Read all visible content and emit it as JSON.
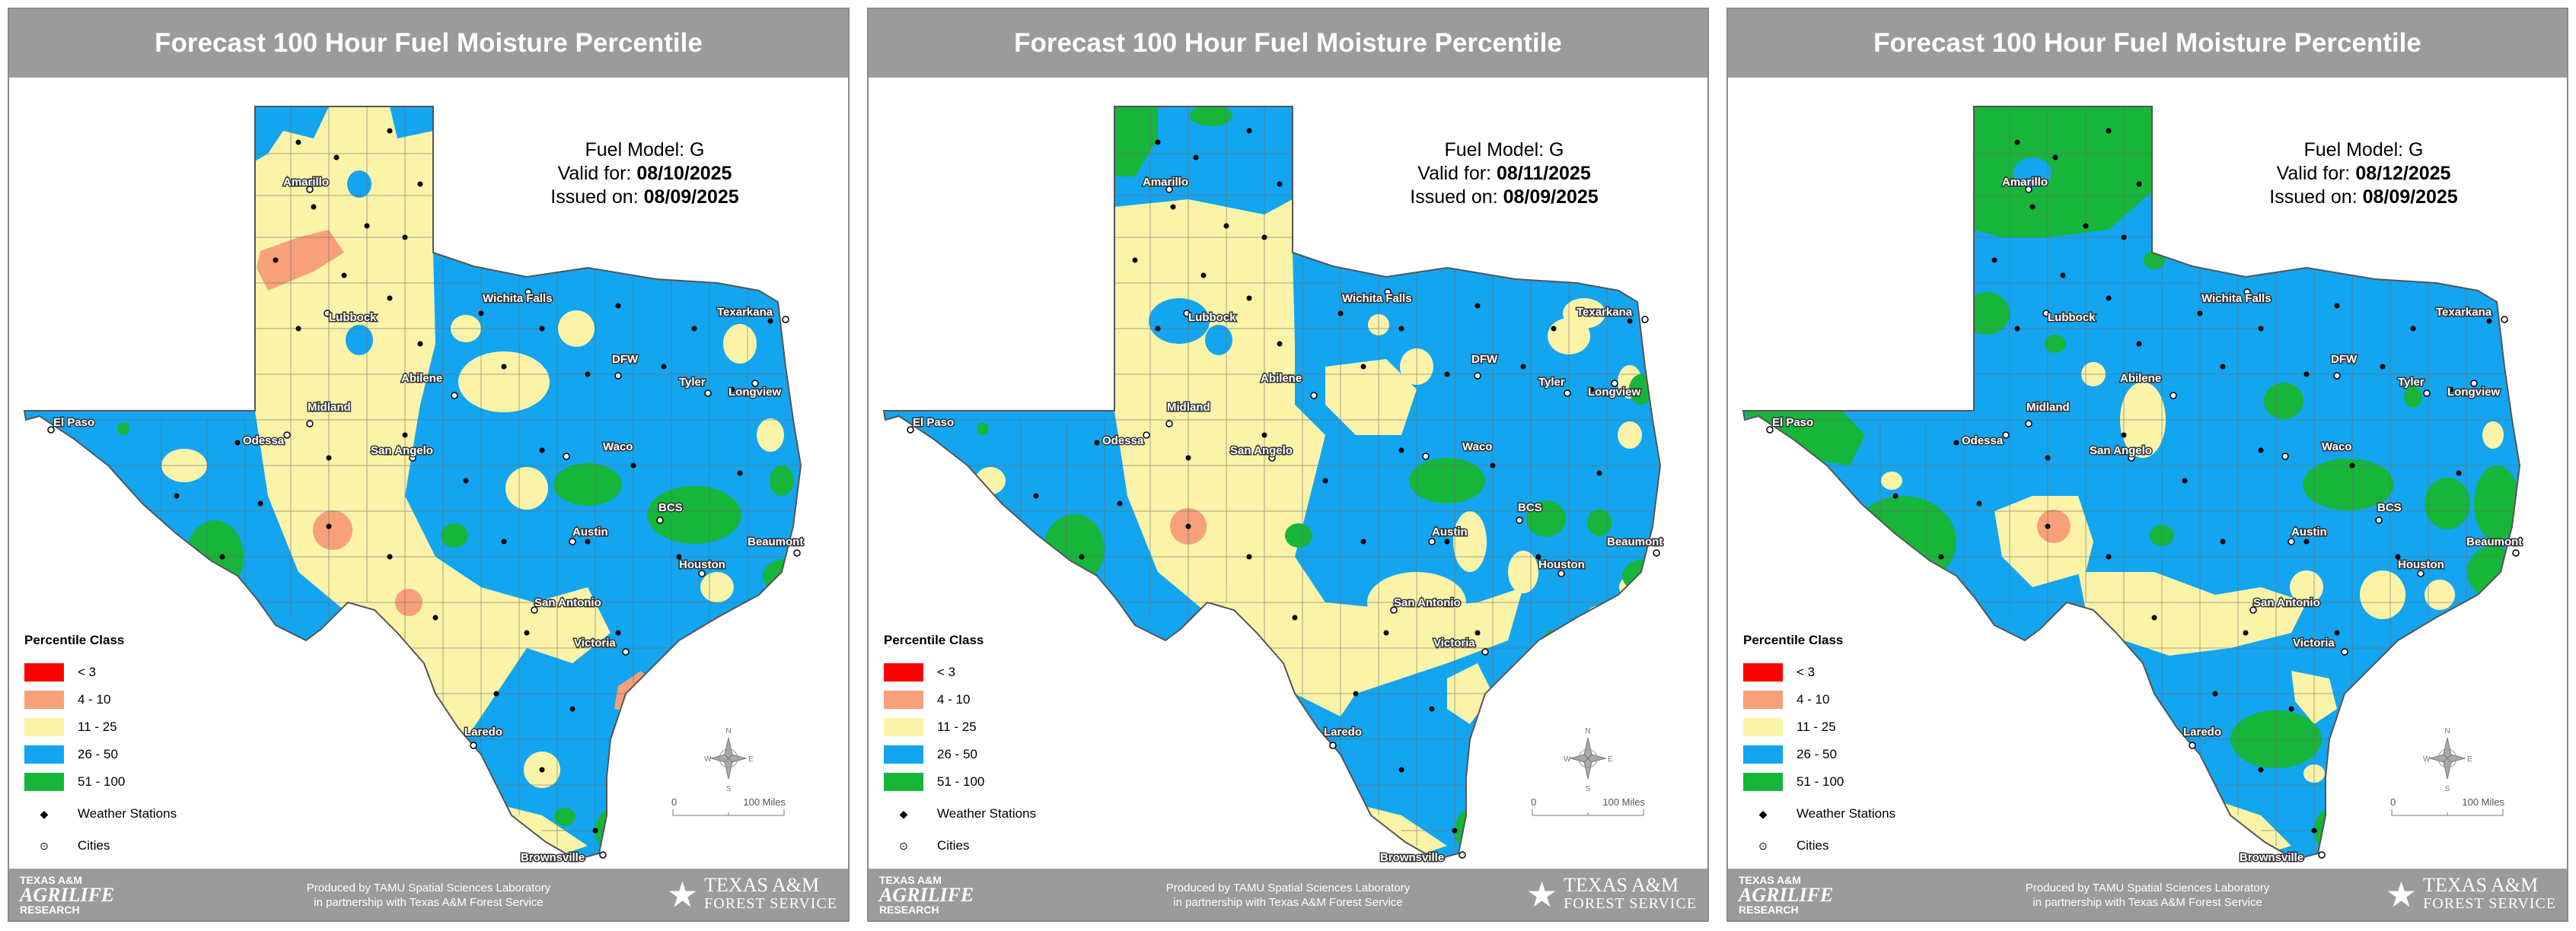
{
  "colors": {
    "lt3": "#ff0000",
    "c4_10": "#f7a07a",
    "c11_25": "#fbf4a8",
    "c26_50": "#13a5f0",
    "c51_100": "#17b53a",
    "header_bg": "#9b9b9b"
  },
  "legend": {
    "title": "Percentile Class",
    "classes": [
      "< 3",
      "4 - 10",
      "11 - 25",
      "26 - 50",
      "51 - 100"
    ],
    "stations_label": "Weather Stations",
    "cities_label": "Cities"
  },
  "scale": {
    "zero": "0",
    "miles": "100 Miles"
  },
  "compass": {
    "n": "N",
    "s": "S",
    "e": "E",
    "w": "W"
  },
  "footer": {
    "left_line1": "TEXAS A&M",
    "left_line2": "AGRILIFE",
    "left_line3": "RESEARCH",
    "center_line1": "Produced by TAMU Spatial Sciences Laboratory",
    "center_line2": "in partnership with Texas A&M Forest Service",
    "right_line1": "TEXAS A&M",
    "right_line2": "FOREST SERVICE"
  },
  "cities": [
    "Amarillo",
    "Lubbock",
    "Wichita Falls",
    "Texarkana",
    "El Paso",
    "Midland",
    "Odessa",
    "Abilene",
    "DFW",
    "Tyler",
    "Longview",
    "San Angelo",
    "Waco",
    "BCS",
    "Austin",
    "Beaumont",
    "Houston",
    "San Antonio",
    "Victoria",
    "Laredo",
    "Brownsville"
  ],
  "panels": [
    {
      "title": "Forecast 100 Hour Fuel Moisture Percentile",
      "fuel_model": "Fuel Model: G",
      "valid_label": "Valid for: ",
      "valid_date": "08/10/2025",
      "issued_label": "Issued on: ",
      "issued_date": "08/09/2025"
    },
    {
      "title": "Forecast 100 Hour Fuel Moisture Percentile",
      "fuel_model": "Fuel Model: G",
      "valid_label": "Valid for: ",
      "valid_date": "08/11/2025",
      "issued_label": "Issued on: ",
      "issued_date": "08/09/2025"
    },
    {
      "title": "Forecast 100 Hour Fuel Moisture Percentile",
      "fuel_model": "Fuel Model: G",
      "valid_label": "Valid for: ",
      "valid_date": "08/12/2025",
      "issued_label": "Issued on: ",
      "issued_date": "08/09/2025"
    }
  ]
}
